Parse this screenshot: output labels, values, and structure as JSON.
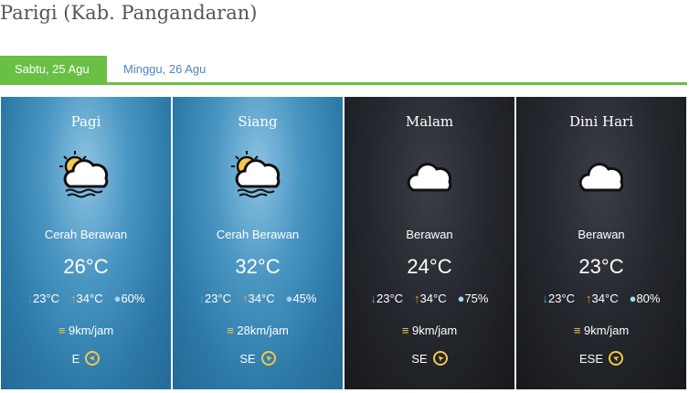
{
  "title": "Parigi (Kab. Pangandaran)",
  "tabs": [
    {
      "label": "Sabtu, 25 Agu",
      "active": true
    },
    {
      "label": "Minggu, 26 Agu",
      "active": false
    }
  ],
  "colors": {
    "accent": "#6abf45",
    "link": "#4a86c5",
    "min": "#4da3e8",
    "max": "#f0a030",
    "wind": "#f2c94c"
  },
  "cards": [
    {
      "period": "Pagi",
      "icon": "partly-cloudy-haze-icon",
      "condition": "Cerah Berawan",
      "temp": "26°C",
      "min": "23°C",
      "max": "34°C",
      "humidity": "60%",
      "wind": "9km/jam",
      "direction": "E",
      "theme": "day"
    },
    {
      "period": "Siang",
      "icon": "partly-cloudy-haze-icon",
      "condition": "Cerah Berawan",
      "temp": "32°C",
      "min": "23°C",
      "max": "34°C",
      "humidity": "45%",
      "wind": "28km/jam",
      "direction": "SE",
      "theme": "day"
    },
    {
      "period": "Malam",
      "icon": "cloud-icon",
      "condition": "Berawan",
      "temp": "24°C",
      "min": "23°C",
      "max": "34°C",
      "humidity": "75%",
      "wind": "9km/jam",
      "direction": "SE",
      "theme": "night"
    },
    {
      "period": "Dini Hari",
      "icon": "cloud-icon",
      "condition": "Berawan",
      "temp": "23°C",
      "min": "23°C",
      "max": "34°C",
      "humidity": "80%",
      "wind": "9km/jam",
      "direction": "ESE",
      "theme": "night"
    }
  ]
}
